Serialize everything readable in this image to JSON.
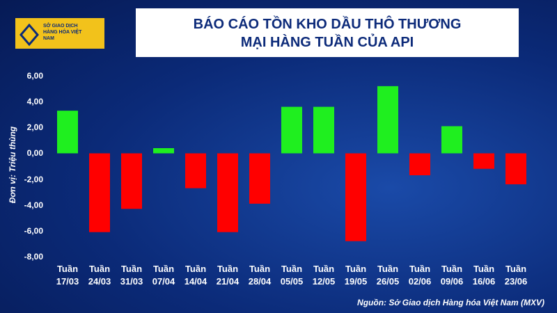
{
  "logo": {
    "text": "SỞ GIAO DỊCH HÀNG HÓA VIỆT NAM"
  },
  "chart_data": {
    "type": "bar",
    "title": "BÁO CÁO TỒN KHO DẦU THÔ THƯƠNG MẠI HÀNG TUẦN CỦA API",
    "y_label": "Đơn vị: Triệu thùng",
    "source": "Nguồn: Sở Giao dịch Hàng hóa Việt Nam (MXV)",
    "categories": [
      "Tuần 17/03",
      "Tuần 24/03",
      "Tuần 31/03",
      "Tuần 07/04",
      "Tuần 14/04",
      "Tuần 21/04",
      "Tuần 28/04",
      "Tuần 05/05",
      "Tuần 12/05",
      "Tuần 19/05",
      "Tuần 26/05",
      "Tuần 02/06",
      "Tuần 09/06",
      "Tuần 16/06",
      "Tuần 23/06"
    ],
    "values": [
      3.3,
      -6.1,
      -4.3,
      0.4,
      -2.7,
      -6.1,
      -3.9,
      3.6,
      3.6,
      -6.8,
      5.2,
      -1.7,
      2.1,
      -1.2,
      -2.4
    ],
    "positive_color": "#1fef1f",
    "negative_color": "#ff0000",
    "ylim": [
      -8,
      6
    ],
    "yticks": [
      {
        "value": -8,
        "label": "-8,00"
      },
      {
        "value": -6,
        "label": "-6,00"
      },
      {
        "value": -4,
        "label": "-4,00"
      },
      {
        "value": -2,
        "label": "-2,00"
      },
      {
        "value": 0,
        "label": "0,00"
      },
      {
        "value": 2,
        "label": "2,00"
      },
      {
        "value": 4,
        "label": "4,00"
      },
      {
        "value": 6,
        "label": "6,00"
      }
    ],
    "grid": false
  }
}
